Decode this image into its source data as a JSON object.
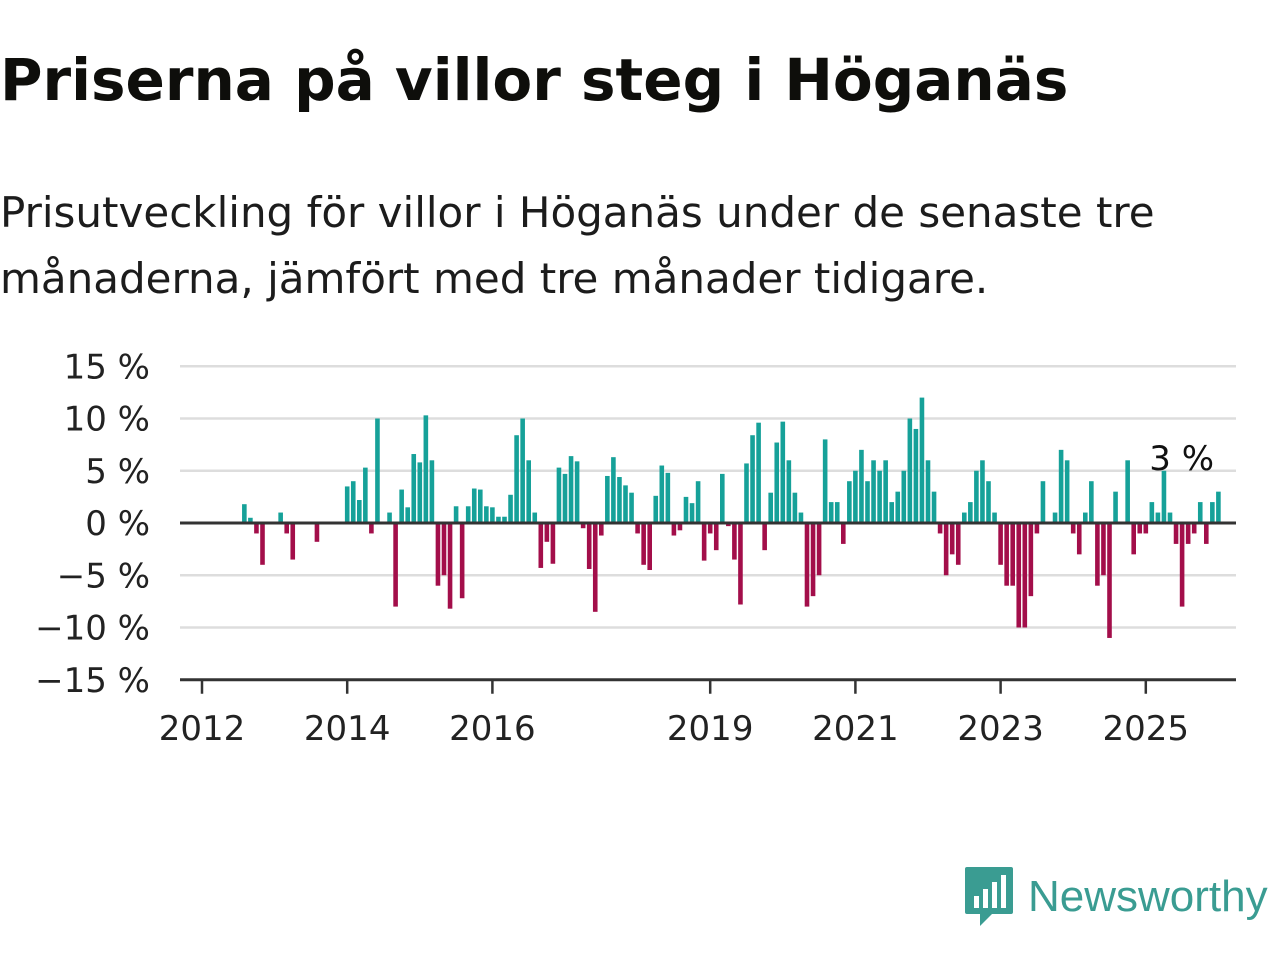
{
  "header": {
    "title": "Priserna på villor steg i Höganäs",
    "subtitle": "Prisutveckling för villor i Höganäs under de senaste tre månaderna, jämfört med tre månader tidigare."
  },
  "brand": {
    "name": "Newsworthy",
    "icon": "newsworthy-logo-icon",
    "color": "#3a9c92"
  },
  "colors": {
    "positive": "#16a199",
    "negative": "#a30e4a",
    "grid": "#dddddd",
    "axis": "#333333"
  },
  "chart_data": {
    "type": "bar",
    "x_unit": "month",
    "x_start": "2012-01",
    "y_unit": "%",
    "ylim": [
      -15,
      15
    ],
    "yticks": [
      15,
      10,
      5,
      0,
      -5,
      -10,
      -15
    ],
    "ytick_labels": [
      "15 %",
      "10 %",
      "5 %",
      "0 %",
      "−5 %",
      "−10 %",
      "−15 %"
    ],
    "xtick_labels": [
      "2012",
      "2014",
      "2016",
      "2019",
      "2021",
      "2023",
      "2025"
    ],
    "grid": true,
    "last_value_label": "3 %",
    "values": [
      null,
      null,
      null,
      null,
      null,
      null,
      null,
      1.8,
      0.5,
      -1.0,
      -4.0,
      null,
      null,
      1.0,
      -1.0,
      -3.5,
      null,
      null,
      null,
      -1.8,
      null,
      null,
      null,
      null,
      3.5,
      4.0,
      2.2,
      5.3,
      -1.0,
      10.0,
      null,
      1.0,
      -8.0,
      3.2,
      1.5,
      6.6,
      5.8,
      10.3,
      6.0,
      -6.0,
      -5.0,
      -8.2,
      1.6,
      -7.2,
      1.6,
      3.3,
      3.2,
      1.6,
      1.5,
      0.6,
      0.6,
      2.7,
      8.4,
      10.0,
      6.0,
      1.0,
      -4.3,
      -1.8,
      -3.9,
      5.3,
      4.7,
      6.4,
      5.9,
      -0.5,
      -4.4,
      -8.5,
      -1.2,
      4.5,
      6.3,
      4.4,
      3.6,
      2.9,
      -1.0,
      -4.0,
      -4.5,
      2.6,
      5.5,
      4.8,
      -1.2,
      -0.7,
      2.5,
      1.9,
      4.0,
      -3.6,
      -1.0,
      -2.6,
      4.7,
      -0.3,
      -3.5,
      -7.8,
      5.7,
      8.4,
      9.6,
      -2.6,
      2.9,
      7.7,
      9.7,
      6.0,
      2.9,
      1.0,
      -8.0,
      -7.0,
      -5.0,
      8.0,
      2.0,
      2.0,
      -2.0,
      4.0,
      5.0,
      7.0,
      4.0,
      6.0,
      5.0,
      6.0,
      2.0,
      3.0,
      5.0,
      10.0,
      9.0,
      12.0,
      6.0,
      3.0,
      -1.0,
      -5.0,
      -3.0,
      -4.0,
      1.0,
      2.0,
      5.0,
      6.0,
      4.0,
      1.0,
      -4.0,
      -6.0,
      -6.0,
      -10.0,
      -10.0,
      -7.0,
      -1.0,
      4.0,
      null,
      1.0,
      7.0,
      6.0,
      -1.0,
      -3.0,
      1.0,
      4.0,
      -6.0,
      -5.0,
      -11.0,
      3.0,
      null,
      6.0,
      -3.0,
      -1.0,
      -1.0,
      2.0,
      1.0,
      5.0,
      1.0,
      -2.0,
      -8.0,
      -2.0,
      -1.0,
      2.0,
      -2.0,
      2.0,
      3.0
    ]
  }
}
